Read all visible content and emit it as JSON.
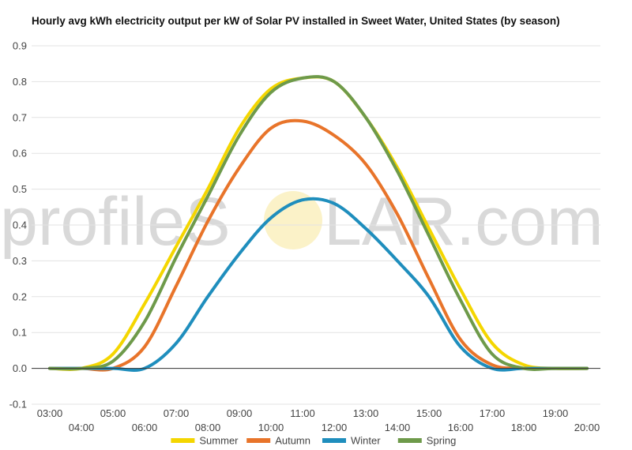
{
  "watermark": {
    "before": "profileS",
    "after": "LAR.com"
  },
  "chart_data": {
    "type": "line",
    "title": "Hourly avg kWh electricity output per kW of Solar PV installed in Sweet Water, United States (by season)",
    "xlabel": "",
    "ylabel": "",
    "x": [
      "03:00",
      "04:00",
      "05:00",
      "06:00",
      "07:00",
      "08:00",
      "09:00",
      "10:00",
      "11:00",
      "12:00",
      "13:00",
      "14:00",
      "15:00",
      "16:00",
      "17:00",
      "18:00",
      "19:00",
      "20:00"
    ],
    "ylim": [
      -0.1,
      0.9
    ],
    "yticks": [
      "-0.1",
      "0.0",
      "0.1",
      "0.2",
      "0.3",
      "0.4",
      "0.5",
      "0.6",
      "0.7",
      "0.8",
      "0.9"
    ],
    "grid": true,
    "legend": "bottom",
    "series": [
      {
        "name": "Summer",
        "color": "#f4d600",
        "values": [
          0.0,
          0.0,
          0.04,
          0.18,
          0.34,
          0.5,
          0.67,
          0.78,
          0.81,
          0.8,
          0.7,
          0.56,
          0.39,
          0.22,
          0.07,
          0.01,
          0.0,
          0.0
        ]
      },
      {
        "name": "Autumn",
        "color": "#e8742a",
        "values": [
          0.0,
          0.0,
          0.0,
          0.06,
          0.23,
          0.41,
          0.56,
          0.67,
          0.69,
          0.65,
          0.57,
          0.43,
          0.25,
          0.08,
          0.01,
          0.0,
          0.0,
          0.0
        ]
      },
      {
        "name": "Winter",
        "color": "#1f8ebd",
        "values": [
          0.0,
          0.0,
          0.0,
          0.0,
          0.07,
          0.2,
          0.32,
          0.42,
          0.47,
          0.46,
          0.39,
          0.3,
          0.2,
          0.06,
          0.0,
          0.0,
          0.0,
          0.0
        ]
      },
      {
        "name": "Spring",
        "color": "#6e9a4a",
        "values": [
          0.0,
          0.0,
          0.02,
          0.13,
          0.31,
          0.48,
          0.65,
          0.77,
          0.81,
          0.8,
          0.7,
          0.55,
          0.37,
          0.19,
          0.04,
          0.0,
          0.0,
          0.0
        ]
      }
    ]
  }
}
